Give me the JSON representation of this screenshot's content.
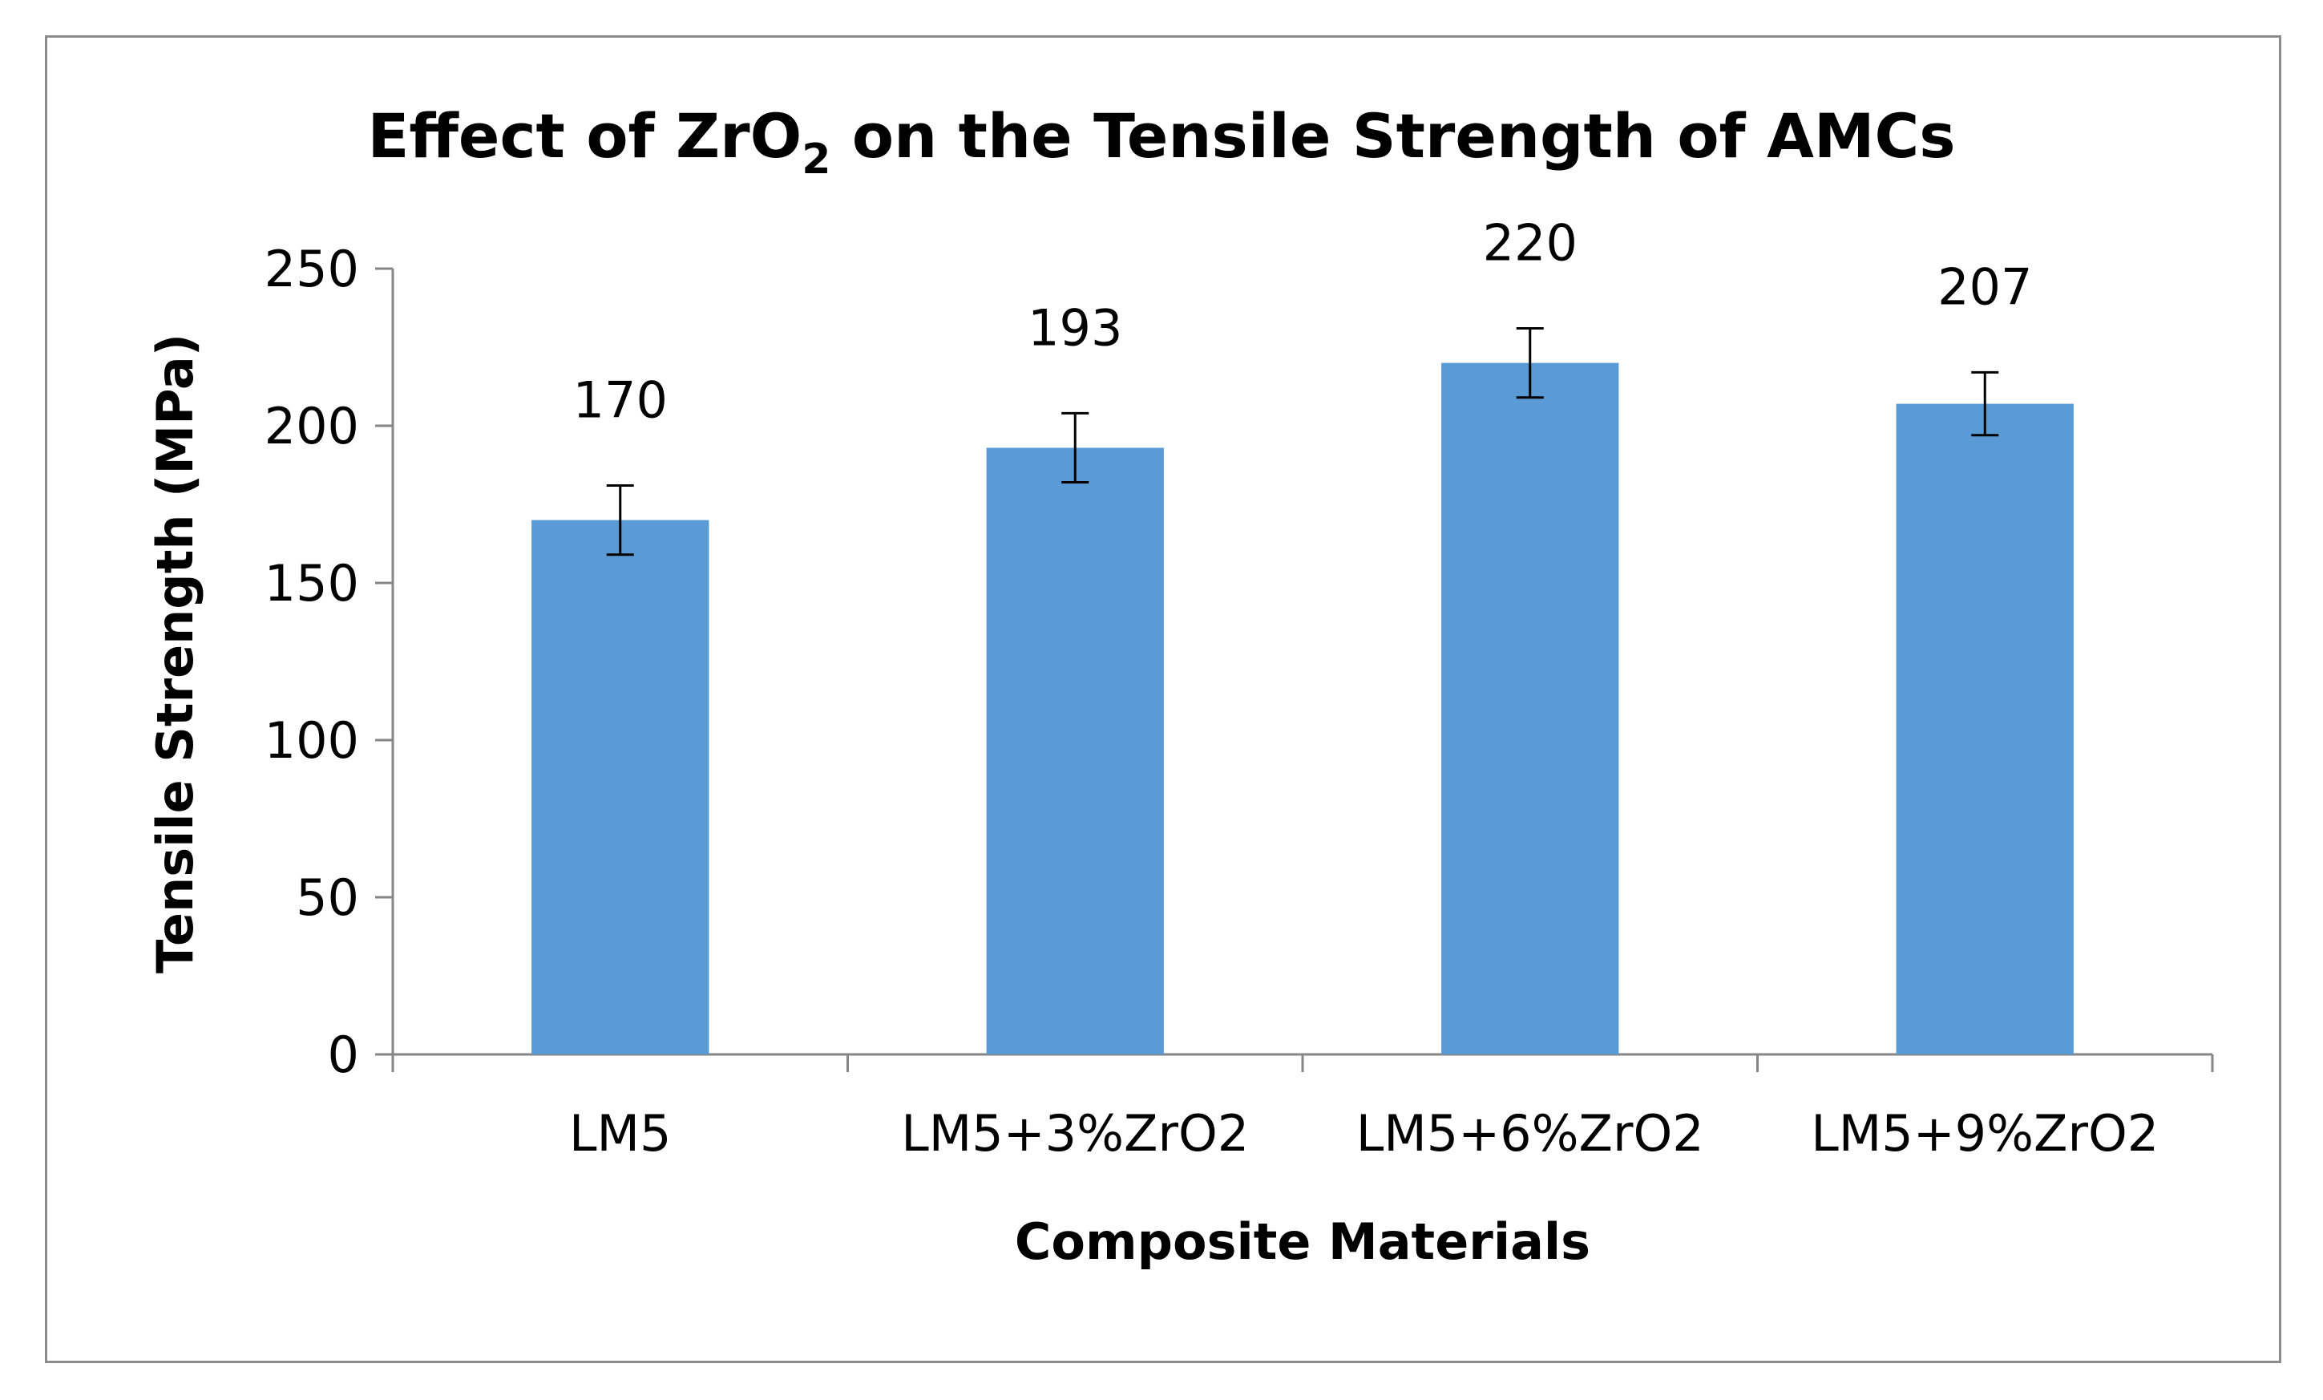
{
  "chart_data": {
    "type": "bar",
    "title": {
      "main": "Effect of ZrO",
      "subscript": "2",
      "rest": " on the Tensile Strength of AMCs"
    },
    "xlabel": "Composite Materials",
    "ylabel": "Tensile Strength (MPa)",
    "categories": [
      "LM5",
      "LM5+3%ZrO2",
      "LM5+6%ZrO2",
      "LM5+9%ZrO2"
    ],
    "values": [
      170,
      193,
      220,
      207
    ],
    "data_labels": [
      "170",
      "193",
      "220",
      "207"
    ],
    "error_bars": [
      11,
      11,
      11,
      10
    ],
    "ylim": [
      0,
      250
    ],
    "yticks": [
      0,
      50,
      100,
      150,
      200,
      250
    ],
    "ytick_labels": [
      "0",
      "50",
      "100",
      "150",
      "200",
      "250"
    ],
    "grid": false,
    "legend": "none",
    "colors": {
      "bar": "#5b9bd5",
      "axis": "#868686",
      "error_bar": "#000000",
      "frame": "#8c8c8c"
    }
  }
}
